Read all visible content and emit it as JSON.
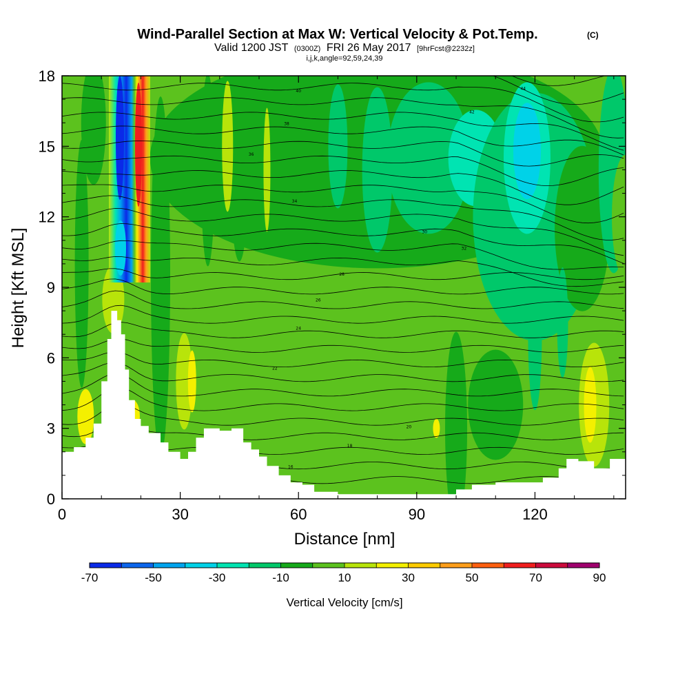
{
  "title": {
    "main": "Wind-Parallel Section at Max W: Vertical Velocity & Pot.Temp.",
    "copyright": "(C)",
    "valid_prefix": "Valid 1200 JST",
    "valid_utc": "(0300Z)",
    "valid_date": "FRI 26 May 2017",
    "forecast": "[9hrFcst@2232z]",
    "indices": "i,j,k,angle=92,59,24,39"
  },
  "chart_data": {
    "type": "heatmap",
    "xlabel": "Distance [nm]",
    "ylabel": "Height [Kft MSL]",
    "xlim": [
      0,
      143
    ],
    "ylim": [
      0,
      18
    ],
    "x_ticks": [
      0,
      30,
      60,
      90,
      120
    ],
    "y_ticks": [
      0,
      3,
      6,
      9,
      12,
      15,
      18
    ],
    "colorbar": {
      "label": "Vertical Velocity [cm/s]",
      "tick_values": [
        -70,
        -50,
        -30,
        -10,
        10,
        30,
        50,
        70,
        90
      ],
      "levels": [
        -70,
        -60,
        -50,
        -40,
        -30,
        -20,
        -10,
        0,
        10,
        20,
        30,
        40,
        50,
        60,
        70,
        80,
        90
      ],
      "colors": [
        "#0a2ae8",
        "#0c66ec",
        "#00a4ee",
        "#00d2e8",
        "#00e4b2",
        "#00c86a",
        "#16aa1a",
        "#5cc21e",
        "#b8e40a",
        "#f4f000",
        "#ffcc00",
        "#ff9e1a",
        "#ff6010",
        "#f01e1e",
        "#cc0a3c",
        "#a0006e",
        "#6e008c"
      ]
    },
    "terrain_kft": [
      [
        0,
        2.0
      ],
      [
        3,
        2.2
      ],
      [
        6,
        2.6
      ],
      [
        8,
        3.2
      ],
      [
        10,
        5.0
      ],
      [
        11.5,
        6.8
      ],
      [
        12.5,
        8.0
      ],
      [
        14,
        7.6
      ],
      [
        15,
        7.0
      ],
      [
        16,
        5.5
      ],
      [
        17,
        4.2
      ],
      [
        18.5,
        3.4
      ],
      [
        20,
        3.1
      ],
      [
        22,
        2.8
      ],
      [
        25,
        2.4
      ],
      [
        27,
        2.0
      ],
      [
        30,
        1.7
      ],
      [
        32,
        2.0
      ],
      [
        34,
        2.6
      ],
      [
        36,
        3.0
      ],
      [
        40,
        2.9
      ],
      [
        43,
        3.0
      ],
      [
        46,
        2.4
      ],
      [
        48,
        2.1
      ],
      [
        50,
        1.8
      ],
      [
        52,
        1.4
      ],
      [
        55,
        1.0
      ],
      [
        58,
        0.7
      ],
      [
        61,
        0.6
      ],
      [
        64,
        0.3
      ],
      [
        70,
        0.2
      ],
      [
        80,
        0.2
      ],
      [
        90,
        0.2
      ],
      [
        100,
        0.4
      ],
      [
        104,
        0.6
      ],
      [
        110,
        0.7
      ],
      [
        118,
        0.7
      ],
      [
        122,
        0.9
      ],
      [
        126,
        1.3
      ],
      [
        128,
        1.7
      ],
      [
        131,
        1.6
      ],
      [
        135,
        1.3
      ],
      [
        139,
        1.7
      ],
      [
        143,
        1.7
      ]
    ],
    "isentrope_labels": [
      "16",
      "18",
      "20",
      "22",
      "24",
      "26",
      "28",
      "30",
      "32",
      "34",
      "36",
      "38",
      "40",
      "42",
      "44"
    ]
  }
}
